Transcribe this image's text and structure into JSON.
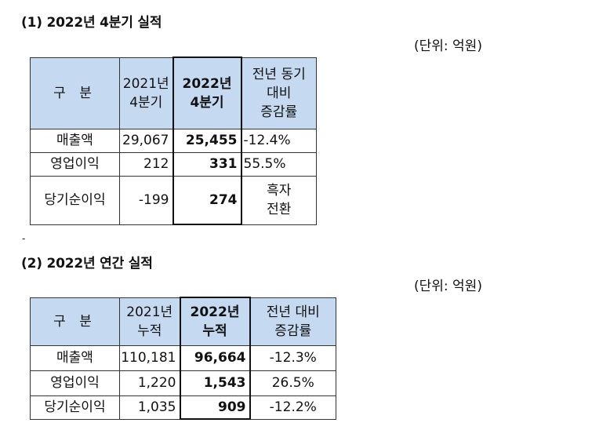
{
  "section1": {
    "heading": "(1) 2022년 4분기 실적",
    "unit": "(단위: 억원)",
    "header": {
      "category": "구 분",
      "prev": [
        "2021년",
        "4분기"
      ],
      "curr": [
        "2022년",
        "4분기"
      ],
      "change": [
        "전년 동기",
        "대비",
        "증감률"
      ]
    },
    "rows": [
      {
        "label": "매출액",
        "prev": "29,067",
        "curr": "25,455",
        "change": [
          "-12.4%"
        ]
      },
      {
        "label": "영업이익",
        "prev": "212",
        "curr": "331",
        "change": [
          "55.5%"
        ]
      },
      {
        "label": "당기순이익",
        "prev": "-199",
        "curr": "274",
        "change": [
          "흑자",
          "전환"
        ]
      }
    ]
  },
  "separator": "-",
  "section2": {
    "heading": "(2) 2022년 연간 실적",
    "unit": "(단위: 억원)",
    "header": {
      "category": "구 분",
      "prev": [
        "2021년",
        "누적"
      ],
      "curr": [
        "2022년",
        "누적"
      ],
      "change": [
        "전년 대비",
        "증감률"
      ]
    },
    "rows": [
      {
        "label": "매출액",
        "prev": "110,181",
        "curr": "96,664",
        "change": [
          "-12.3%"
        ]
      },
      {
        "label": "영업이익",
        "prev": "1,220",
        "curr": "1,543",
        "change": [
          "26.5%"
        ]
      },
      {
        "label": "당기순이익",
        "prev": "1,035",
        "curr": "909",
        "change": [
          "-12.2%"
        ]
      }
    ]
  }
}
